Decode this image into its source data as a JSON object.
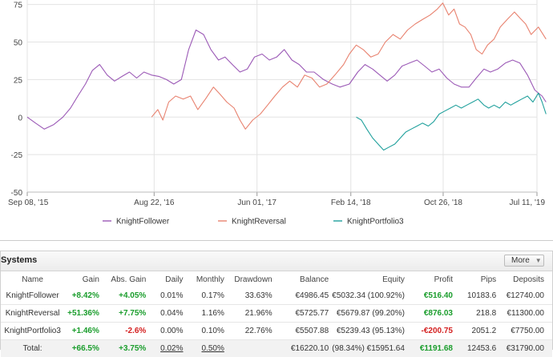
{
  "chart_data": {
    "type": "line",
    "x_tick_labels": [
      "Sep 08, '15",
      "Aug 22, '16",
      "Jun 01, '17",
      "Feb 14, '18",
      "Oct 26, '18",
      "Jul 11, '19"
    ],
    "x_ticks": [
      {
        "label": "Sep 08, '15",
        "date": "2015-09-08"
      },
      {
        "label": "Aug 22, '16",
        "date": "2016-08-22"
      },
      {
        "label": "Jun 01, '17",
        "date": "2017-06-01"
      },
      {
        "label": "Feb 14, '18",
        "date": "2018-02-14"
      },
      {
        "label": "Oct 26, '18",
        "date": "2018-10-26"
      },
      {
        "label": "Jul 11, '19",
        "date": "2019-07-11"
      }
    ],
    "y_ticks": [
      75,
      50,
      25,
      0,
      -25,
      -50
    ],
    "ylim": [
      -50,
      78
    ],
    "grid": true,
    "legend_position": "bottom",
    "series": [
      {
        "name": "KnightFollower",
        "color": "#9b59b6",
        "points": [
          [
            "2015-09-08",
            0
          ],
          [
            "2015-10-01",
            -4
          ],
          [
            "2015-10-25",
            -8
          ],
          [
            "2015-11-20",
            -5
          ],
          [
            "2015-12-15",
            0
          ],
          [
            "2016-01-05",
            6
          ],
          [
            "2016-01-25",
            14
          ],
          [
            "2016-02-15",
            22
          ],
          [
            "2016-03-05",
            31
          ],
          [
            "2016-03-25",
            35
          ],
          [
            "2016-04-15",
            28
          ],
          [
            "2016-05-05",
            24
          ],
          [
            "2016-05-25",
            27
          ],
          [
            "2016-06-15",
            30
          ],
          [
            "2016-07-05",
            26
          ],
          [
            "2016-07-25",
            30
          ],
          [
            "2016-08-15",
            28
          ],
          [
            "2016-09-05",
            27
          ],
          [
            "2016-09-25",
            25
          ],
          [
            "2016-10-15",
            22
          ],
          [
            "2016-11-05",
            25
          ],
          [
            "2016-11-25",
            45
          ],
          [
            "2016-12-15",
            58
          ],
          [
            "2017-01-05",
            55
          ],
          [
            "2017-01-25",
            45
          ],
          [
            "2017-02-15",
            38
          ],
          [
            "2017-03-05",
            40
          ],
          [
            "2017-03-25",
            35
          ],
          [
            "2017-04-15",
            30
          ],
          [
            "2017-05-05",
            32
          ],
          [
            "2017-05-25",
            40
          ],
          [
            "2017-06-15",
            42
          ],
          [
            "2017-07-05",
            38
          ],
          [
            "2017-07-25",
            40
          ],
          [
            "2017-08-15",
            45
          ],
          [
            "2017-09-05",
            38
          ],
          [
            "2017-09-25",
            35
          ],
          [
            "2017-10-15",
            30
          ],
          [
            "2017-11-05",
            30
          ],
          [
            "2017-12-01",
            25
          ],
          [
            "2017-12-25",
            22
          ],
          [
            "2018-01-15",
            20
          ],
          [
            "2018-02-10",
            22
          ],
          [
            "2018-03-05",
            30
          ],
          [
            "2018-03-25",
            35
          ],
          [
            "2018-04-15",
            32
          ],
          [
            "2018-05-05",
            28
          ],
          [
            "2018-05-25",
            24
          ],
          [
            "2018-06-15",
            28
          ],
          [
            "2018-07-05",
            34
          ],
          [
            "2018-07-25",
            36
          ],
          [
            "2018-08-15",
            38
          ],
          [
            "2018-09-05",
            34
          ],
          [
            "2018-09-25",
            30
          ],
          [
            "2018-10-15",
            32
          ],
          [
            "2018-11-05",
            26
          ],
          [
            "2018-11-25",
            22
          ],
          [
            "2018-12-15",
            20
          ],
          [
            "2019-01-05",
            20
          ],
          [
            "2019-01-25",
            26
          ],
          [
            "2019-02-15",
            32
          ],
          [
            "2019-03-05",
            30
          ],
          [
            "2019-03-25",
            32
          ],
          [
            "2019-04-15",
            36
          ],
          [
            "2019-05-05",
            38
          ],
          [
            "2019-05-25",
            36
          ],
          [
            "2019-06-15",
            28
          ],
          [
            "2019-07-05",
            18
          ],
          [
            "2019-07-25",
            14
          ],
          [
            "2019-08-05",
            10
          ]
        ]
      },
      {
        "name": "KnightReversal",
        "color": "#e8826f",
        "points": [
          [
            "2016-08-15",
            0
          ],
          [
            "2016-09-01",
            5
          ],
          [
            "2016-09-15",
            -2
          ],
          [
            "2016-10-01",
            10
          ],
          [
            "2016-10-20",
            14
          ],
          [
            "2016-11-10",
            12
          ],
          [
            "2016-11-30",
            14
          ],
          [
            "2016-12-20",
            5
          ],
          [
            "2017-01-10",
            12
          ],
          [
            "2017-02-01",
            20
          ],
          [
            "2017-02-20",
            15
          ],
          [
            "2017-03-10",
            10
          ],
          [
            "2017-03-30",
            6
          ],
          [
            "2017-04-15",
            -2
          ],
          [
            "2017-04-30",
            -8
          ],
          [
            "2017-05-20",
            -2
          ],
          [
            "2017-06-10",
            2
          ],
          [
            "2017-06-30",
            8
          ],
          [
            "2017-07-20",
            14
          ],
          [
            "2017-08-10",
            20
          ],
          [
            "2017-08-30",
            24
          ],
          [
            "2017-09-20",
            20
          ],
          [
            "2017-10-10",
            28
          ],
          [
            "2017-10-30",
            26
          ],
          [
            "2017-11-20",
            20
          ],
          [
            "2017-12-10",
            22
          ],
          [
            "2018-01-01",
            28
          ],
          [
            "2018-01-25",
            35
          ],
          [
            "2018-02-10",
            42
          ],
          [
            "2018-03-01",
            48
          ],
          [
            "2018-03-20",
            45
          ],
          [
            "2018-04-10",
            40
          ],
          [
            "2018-04-30",
            42
          ],
          [
            "2018-05-20",
            50
          ],
          [
            "2018-06-10",
            55
          ],
          [
            "2018-06-30",
            52
          ],
          [
            "2018-07-20",
            58
          ],
          [
            "2018-08-10",
            62
          ],
          [
            "2018-08-30",
            65
          ],
          [
            "2018-09-20",
            68
          ],
          [
            "2018-10-10",
            72
          ],
          [
            "2018-10-25",
            76
          ],
          [
            "2018-11-10",
            68
          ],
          [
            "2018-11-25",
            72
          ],
          [
            "2018-12-10",
            62
          ],
          [
            "2018-12-25",
            60
          ],
          [
            "2019-01-10",
            55
          ],
          [
            "2019-01-25",
            45
          ],
          [
            "2019-02-10",
            42
          ],
          [
            "2019-02-25",
            48
          ],
          [
            "2019-03-15",
            52
          ],
          [
            "2019-04-01",
            60
          ],
          [
            "2019-04-20",
            65
          ],
          [
            "2019-05-10",
            70
          ],
          [
            "2019-05-25",
            66
          ],
          [
            "2019-06-10",
            62
          ],
          [
            "2019-06-25",
            55
          ],
          [
            "2019-07-15",
            60
          ],
          [
            "2019-08-05",
            52
          ]
        ]
      },
      {
        "name": "KnightPortfolio3",
        "color": "#1fa09c",
        "points": [
          [
            "2018-03-01",
            0
          ],
          [
            "2018-03-15",
            -2
          ],
          [
            "2018-03-30",
            -8
          ],
          [
            "2018-04-15",
            -14
          ],
          [
            "2018-04-30",
            -18
          ],
          [
            "2018-05-15",
            -22
          ],
          [
            "2018-05-30",
            -20
          ],
          [
            "2018-06-15",
            -18
          ],
          [
            "2018-06-30",
            -14
          ],
          [
            "2018-07-15",
            -10
          ],
          [
            "2018-07-30",
            -8
          ],
          [
            "2018-08-15",
            -6
          ],
          [
            "2018-08-30",
            -4
          ],
          [
            "2018-09-15",
            -6
          ],
          [
            "2018-09-30",
            -3
          ],
          [
            "2018-10-15",
            2
          ],
          [
            "2018-10-30",
            4
          ],
          [
            "2018-11-15",
            6
          ],
          [
            "2018-11-30",
            8
          ],
          [
            "2018-12-15",
            6
          ],
          [
            "2018-12-30",
            8
          ],
          [
            "2019-01-15",
            10
          ],
          [
            "2019-01-30",
            12
          ],
          [
            "2019-02-15",
            8
          ],
          [
            "2019-02-28",
            6
          ],
          [
            "2019-03-15",
            8
          ],
          [
            "2019-03-30",
            6
          ],
          [
            "2019-04-15",
            10
          ],
          [
            "2019-04-30",
            8
          ],
          [
            "2019-05-15",
            10
          ],
          [
            "2019-05-30",
            12
          ],
          [
            "2019-06-15",
            14
          ],
          [
            "2019-06-30",
            10
          ],
          [
            "2019-07-15",
            16
          ],
          [
            "2019-07-25",
            10
          ],
          [
            "2019-08-05",
            2
          ]
        ]
      }
    ]
  },
  "systems": {
    "title": "Systems",
    "more_label": "More",
    "columns": [
      "Name",
      "Gain",
      "Abs. Gain",
      "Daily",
      "Monthly",
      "Drawdown",
      "Balance",
      "Equity",
      "Profit",
      "Pips",
      "Deposits"
    ],
    "rows": [
      {
        "name": "KnightFollower",
        "gain": "+8.42%",
        "abs_gain": "+4.05%",
        "daily": "0.01%",
        "monthly": "0.17%",
        "drawdown": "33.63%",
        "balance": "€4986.45",
        "equity_pct": "(100.92%)",
        "equity": "€5032.34",
        "profit": "€516.40",
        "pips": "10183.6",
        "deposits": "€12740.00"
      },
      {
        "name": "KnightReversal",
        "gain": "+51.36%",
        "abs_gain": "+7.75%",
        "daily": "0.04%",
        "monthly": "1.16%",
        "drawdown": "21.96%",
        "balance": "€5725.77",
        "equity_pct": "(99.20%)",
        "equity": "€5679.87",
        "profit": "€876.03",
        "pips": "218.8",
        "deposits": "€11300.00"
      },
      {
        "name": "KnightPortfolio3",
        "gain": "+1.46%",
        "abs_gain": "-2.6%",
        "daily": "0.00%",
        "monthly": "0.10%",
        "drawdown": "22.76%",
        "balance": "€5507.88",
        "equity_pct": "(95.13%)",
        "equity": "€5239.43",
        "profit": "-€200.75",
        "pips": "2051.2",
        "deposits": "€7750.00"
      }
    ],
    "total": {
      "label": "Total:",
      "gain": "+66.5%",
      "abs_gain": "+3.75%",
      "daily": "0.02%",
      "monthly": "0.50%",
      "balance": "€16220.10",
      "equity_pct": "(98.34%)",
      "equity": "€15951.64",
      "profit": "€1191.68",
      "pips": "12453.6",
      "deposits": "€31790.00"
    }
  }
}
